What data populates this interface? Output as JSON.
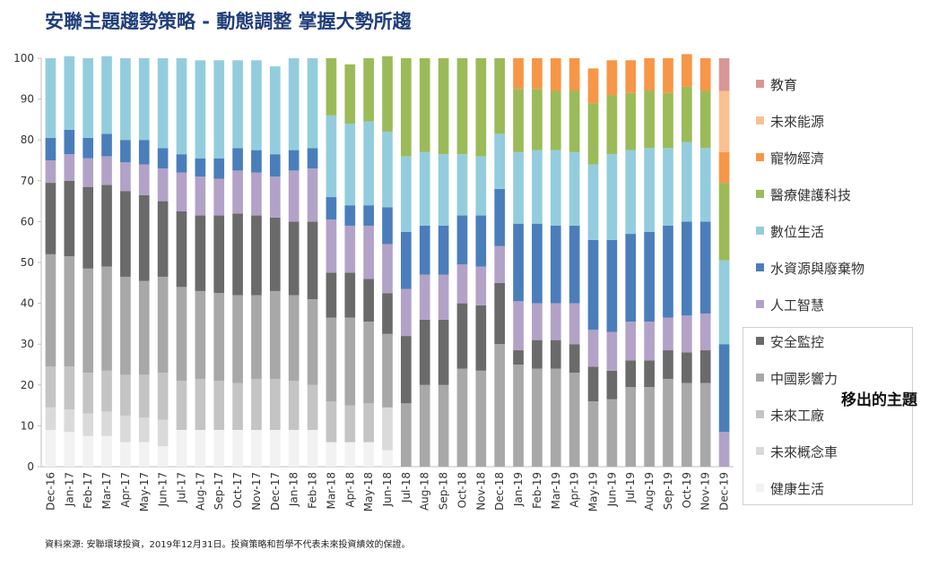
{
  "title": "安聯主題趨勢策略 - 動態調整 掌握大勢所趨",
  "callout": "移出的主題",
  "source": "資料來源: 安聯環球投資，2019年12月31日。投資策略和哲學不代表未來投資績效的保證。",
  "chart_data": {
    "type": "bar",
    "stacked": true,
    "ylim": [
      0,
      100
    ],
    "yticks": [
      0,
      10,
      20,
      30,
      40,
      50,
      60,
      70,
      80,
      90,
      100
    ],
    "legend_position": "right",
    "categories": [
      "Dec-16",
      "Jan-17",
      "Feb-17",
      "Mar-17",
      "Apr-17",
      "May-17",
      "Jun-17",
      "Jul-17",
      "Aug-17",
      "Sep-17",
      "Oct-17",
      "Nov-17",
      "Dec-17",
      "Jan-18",
      "Feb-18",
      "Mar-18",
      "Apr-18",
      "May-18",
      "Jun-18",
      "Jul-18",
      "Aug-18",
      "Sep-18",
      "Oct-18",
      "Nov-18",
      "Dec-18",
      "Jan-19",
      "Feb-19",
      "Mar-19",
      "Apr-19",
      "May-19",
      "Jun-19",
      "Jul-19",
      "Aug-19",
      "Sep-19",
      "Oct-19",
      "Nov-19",
      "Dec-19"
    ],
    "series": [
      {
        "name": "健康生活",
        "color": "#f2f2f2",
        "values": [
          9,
          8.5,
          7.5,
          7.5,
          6,
          6,
          5,
          9,
          9,
          9,
          9,
          9,
          9,
          9,
          9,
          6,
          6,
          6,
          4,
          0,
          0,
          0,
          0,
          0,
          0,
          0,
          0,
          0,
          0,
          0,
          0,
          0,
          0,
          0,
          0,
          0,
          0
        ]
      },
      {
        "name": "未來概念車",
        "color": "#dadada",
        "values": [
          5.5,
          5.5,
          5.5,
          6,
          6.5,
          6,
          6.5,
          0,
          0,
          0,
          0,
          0,
          0,
          0,
          0,
          0,
          0,
          0,
          10.5,
          0,
          0,
          0,
          0,
          0,
          0,
          0,
          0,
          0,
          0,
          0,
          0,
          0,
          0,
          0,
          0,
          0,
          0
        ]
      },
      {
        "name": "未來工廠",
        "color": "#c4c4c4",
        "values": [
          10,
          10.5,
          10,
          10,
          10,
          10.5,
          11.5,
          12,
          12.5,
          12,
          11.5,
          12.5,
          12.5,
          12,
          11,
          10,
          9,
          9.5,
          0,
          0,
          0,
          0,
          0,
          0,
          0,
          0,
          0,
          0,
          0,
          0,
          0,
          0,
          0,
          0,
          0,
          0,
          0
        ]
      },
      {
        "name": "中國影響力",
        "color": "#a8a8a8",
        "values": [
          27.5,
          27,
          25.5,
          25.5,
          24,
          23,
          23.5,
          23,
          21.5,
          21.5,
          21.5,
          20.5,
          21.5,
          21,
          21,
          20.5,
          21.5,
          20,
          18,
          15.5,
          20,
          20,
          24,
          23.5,
          30,
          25,
          24,
          24,
          23,
          16,
          16.5,
          19.5,
          19.5,
          21.5,
          20.5,
          20.5,
          0
        ]
      },
      {
        "name": "安全監控",
        "color": "#6a6a6a",
        "values": [
          17.5,
          18.5,
          20,
          20,
          21,
          21,
          18.5,
          18.5,
          18.5,
          19,
          20,
          19.5,
          18,
          18,
          19,
          11,
          11,
          10.5,
          10,
          16.5,
          16,
          16,
          16,
          16,
          15,
          3.5,
          7,
          7,
          7,
          8.5,
          7,
          6.5,
          6.5,
          7,
          7.5,
          8,
          0
        ]
      },
      {
        "name": "人工智慧",
        "color": "#b3a2c7",
        "values": [
          5.5,
          6.5,
          7,
          7,
          7,
          7.5,
          8,
          9.5,
          9.5,
          9,
          10.5,
          10.5,
          10,
          12.5,
          13,
          13,
          11.5,
          13,
          12,
          11.5,
          11,
          11,
          9.5,
          9.5,
          9,
          12,
          9,
          9,
          10,
          9,
          9.5,
          9.5,
          9.5,
          8,
          9,
          9,
          8.5
        ]
      },
      {
        "name": "水資源與廢棄物",
        "color": "#4a7ebb",
        "values": [
          5.5,
          6,
          5,
          5.5,
          5.5,
          6,
          5,
          4.5,
          4.5,
          5,
          5.5,
          5.5,
          5.5,
          5,
          5,
          5.5,
          5,
          5,
          9,
          14,
          12,
          12,
          12,
          12.5,
          14,
          19,
          19.5,
          19,
          19,
          22,
          22.5,
          21.5,
          22,
          22.5,
          23,
          22.5,
          21.5
        ]
      },
      {
        "name": "數位生活",
        "color": "#93cddd",
        "values": [
          19.5,
          18,
          19.5,
          19,
          20,
          20,
          22,
          23.5,
          24,
          24,
          21.5,
          22,
          21.5,
          22.5,
          22,
          20,
          20,
          20.5,
          18.5,
          18.5,
          18,
          17.5,
          15,
          14.5,
          13.5,
          17.5,
          18,
          18.5,
          18,
          18.5,
          21,
          20.5,
          20.5,
          19,
          19.5,
          18,
          20.5
        ]
      },
      {
        "name": "醫療健護科技",
        "color": "#9bbb59",
        "values": [
          0,
          0,
          0,
          0,
          0,
          0,
          0,
          0,
          0,
          0,
          0,
          0,
          0,
          0,
          0,
          14,
          14.5,
          15.5,
          18.5,
          24,
          23,
          23.5,
          23.5,
          24,
          18.5,
          15.5,
          15,
          14.5,
          15,
          15,
          14.5,
          14,
          14,
          13.5,
          13.5,
          14,
          19
        ]
      },
      {
        "name": "寵物經濟",
        "color": "#f79646",
        "values": [
          0,
          0,
          0,
          0,
          0,
          0,
          0,
          0,
          0,
          0,
          0,
          0,
          0,
          0,
          0,
          0,
          0,
          0,
          0,
          0,
          0,
          0,
          0,
          0,
          0,
          7.5,
          7.5,
          8,
          8,
          8.5,
          8.5,
          8,
          8,
          8.5,
          8,
          8,
          7.5
        ]
      },
      {
        "name": "未來能源",
        "color": "#fac090",
        "values": [
          0,
          0,
          0,
          0,
          0,
          0,
          0,
          0,
          0,
          0,
          0,
          0,
          0,
          0,
          0,
          0,
          0,
          0,
          0,
          0,
          0,
          0,
          0,
          0,
          0,
          0,
          0,
          0,
          0,
          0,
          0,
          0,
          0,
          0,
          0,
          0,
          15
        ]
      },
      {
        "name": "教育",
        "color": "#d99694",
        "values": [
          0,
          0,
          0,
          0,
          0,
          0,
          0,
          0,
          0,
          0,
          0,
          0,
          0,
          0,
          0,
          0,
          0,
          0,
          0,
          0,
          0,
          0,
          0,
          0,
          0,
          0,
          0,
          0,
          0,
          0,
          0,
          0,
          0,
          0,
          0,
          0,
          8
        ]
      }
    ]
  }
}
